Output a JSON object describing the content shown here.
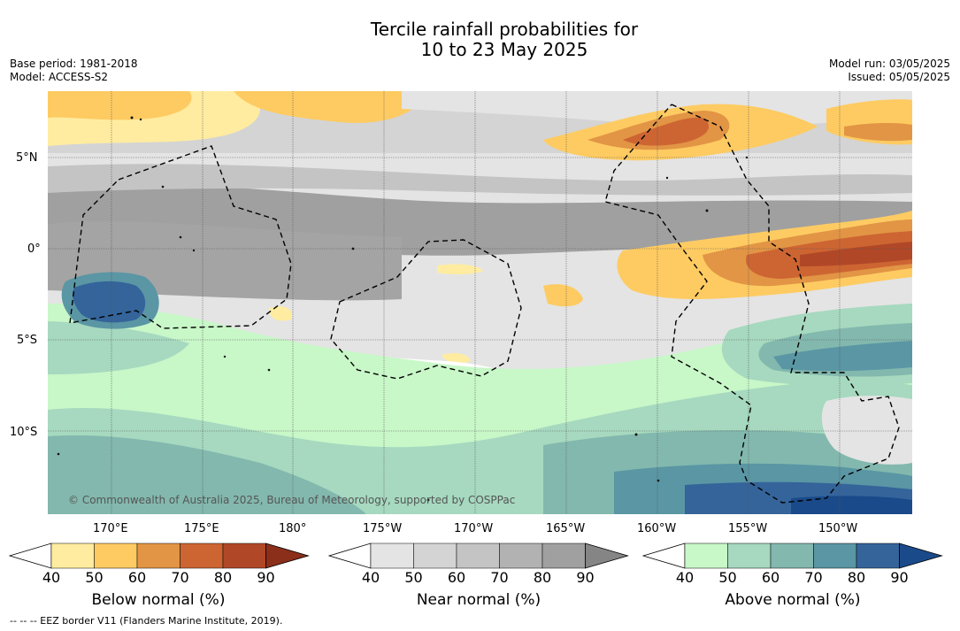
{
  "title_line1": "Tercile rainfall probabilities for",
  "title_line2": "10 to 23 May 2025",
  "base_period": "Base period: 1981-2018",
  "model": "Model: ACCESS-S2",
  "model_run": "Model run: 03/05/2025",
  "issued": "Issued: 05/05/2025",
  "copyright": "© Commonwealth of Australia 2025, Bureau of Meteorology, supported by COSPPac",
  "footnote": "--  --  -- EEZ border V11 (Flanders Marine Institute, 2019).",
  "lat_labels": [
    "5°N",
    "0°",
    "5°S",
    "10°S"
  ],
  "lon_labels": [
    "170°E",
    "175°E",
    "180°",
    "175°W",
    "170°W",
    "165°W",
    "160°W",
    "155°W",
    "150°W"
  ],
  "colorbars": [
    {
      "title": "Below normal (%)",
      "ticks": [
        "40",
        "50",
        "60",
        "70",
        "80",
        "90"
      ],
      "colors": [
        "#ffffff",
        "#ffeca0",
        "#fecb62",
        "#e29545",
        "#cd6532",
        "#b04828",
        "#8b2e1a"
      ]
    },
    {
      "title": "Near normal (%)",
      "ticks": [
        "40",
        "50",
        "60",
        "70",
        "80",
        "90"
      ],
      "colors": [
        "#ffffff",
        "#e4e4e4",
        "#d4d4d4",
        "#c4c4c4",
        "#b2b2b2",
        "#a0a0a0",
        "#858585"
      ]
    },
    {
      "title": "Above normal (%)",
      "ticks": [
        "40",
        "50",
        "60",
        "70",
        "80",
        "90"
      ],
      "colors": [
        "#ffffff",
        "#c8f7c8",
        "#a6d9bf",
        "#83b8ae",
        "#5a96a4",
        "#34649a",
        "#1b4a8a"
      ]
    }
  ]
}
